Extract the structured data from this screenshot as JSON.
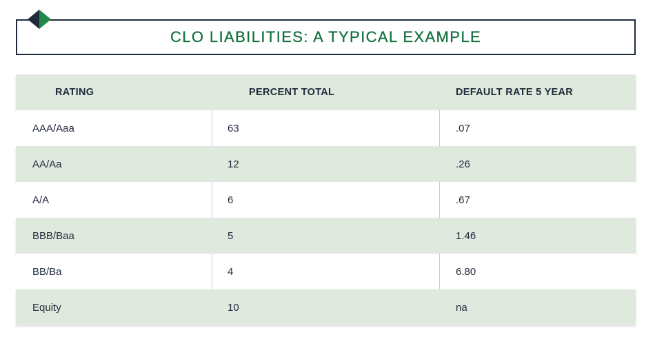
{
  "title": "CLO LIABILITIES: A TYPICAL EXAMPLE",
  "colors": {
    "title_green": "#15703f",
    "row_shade": "#dfe9dd",
    "border_dark": "#1f2a3a",
    "logo_dark": "#1f2a3a",
    "logo_green": "#1f8a4c"
  },
  "logo": {
    "icon": "diamond-logo-icon"
  },
  "table": {
    "headers": [
      "RATING",
      "PERCENT TOTAL",
      "DEFAULT RATE 5 YEAR"
    ],
    "rows": [
      [
        "AAA/Aaa",
        "63",
        ".07"
      ],
      [
        "AA/Aa",
        "12",
        ".26"
      ],
      [
        "A/A",
        "6",
        ".67"
      ],
      [
        "BBB/Baa",
        "5",
        "1.46"
      ],
      [
        "BB/Ba",
        "4",
        "6.80"
      ],
      [
        "Equity",
        "10",
        "na"
      ]
    ]
  }
}
